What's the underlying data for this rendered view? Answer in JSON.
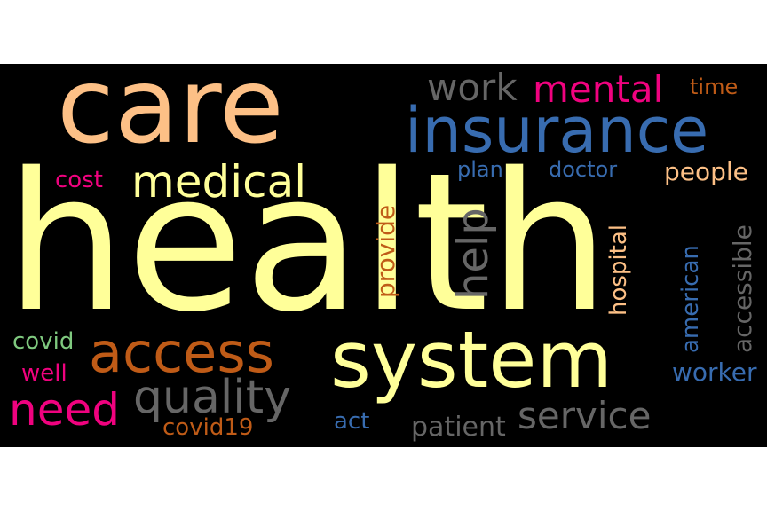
{
  "words": {
    "health": {
      "text": "health",
      "color": "#ffff99"
    },
    "care": {
      "text": "care",
      "color": "#fdc086"
    },
    "insurance": {
      "text": "insurance",
      "color": "#386cb0"
    },
    "system": {
      "text": "system",
      "color": "#ffff99"
    },
    "access": {
      "text": "access",
      "color": "#bf5b17"
    },
    "medical": {
      "text": "medical",
      "color": "#ffff99"
    },
    "mental": {
      "text": "mental",
      "color": "#f0027f"
    },
    "work": {
      "text": "work",
      "color": "#666666"
    },
    "need": {
      "text": "need",
      "color": "#f0027f"
    },
    "quality": {
      "text": "quality",
      "color": "#666666"
    },
    "service": {
      "text": "service",
      "color": "#666666"
    },
    "help": {
      "text": "help",
      "color": "#666666"
    },
    "time": {
      "text": "time",
      "color": "#bf5b17"
    },
    "plan": {
      "text": "plan",
      "color": "#386cb0"
    },
    "doctor": {
      "text": "doctor",
      "color": "#386cb0"
    },
    "people": {
      "text": "people",
      "color": "#fdc086"
    },
    "cost": {
      "text": "cost",
      "color": "#f0027f"
    },
    "provide": {
      "text": "provide",
      "color": "#bf5b17"
    },
    "hospital": {
      "text": "hospital",
      "color": "#fdc086"
    },
    "american": {
      "text": "american",
      "color": "#386cb0"
    },
    "accessible": {
      "text": "accessible",
      "color": "#666666"
    },
    "covid": {
      "text": "covid",
      "color": "#7fc97f"
    },
    "well": {
      "text": "well",
      "color": "#f0027f"
    },
    "worker": {
      "text": "worker",
      "color": "#386cb0"
    },
    "covid19": {
      "text": "covid19",
      "color": "#bf5b17"
    },
    "act": {
      "text": "act",
      "color": "#386cb0"
    },
    "patient": {
      "text": "patient",
      "color": "#666666"
    }
  }
}
